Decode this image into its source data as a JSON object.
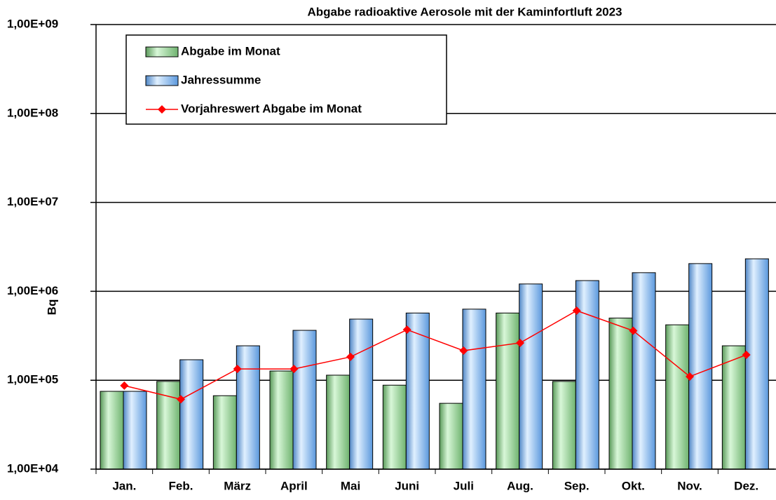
{
  "chart_data": {
    "type": "bar",
    "title": "Abgabe radioaktive Aerosole mit der Kaminfortluft 2023",
    "y_label": "Bq",
    "y_scale": "log",
    "grid": true,
    "legend_position": "upper left",
    "categories": [
      "Jan.",
      "Feb.",
      "März",
      "April",
      "Mai",
      "Juni",
      "Juli",
      "Aug.",
      "Sep.",
      "Okt.",
      "Nov.",
      "Dez."
    ],
    "series": [
      {
        "name": "Abgabe im Monat",
        "type": "bar",
        "color": "#7fc97f",
        "values": [
          75000,
          97000,
          67000,
          127000,
          114000,
          88000,
          55000,
          570000,
          97000,
          500000,
          420000,
          244000
        ]
      },
      {
        "name": "Jahressumme",
        "type": "bar",
        "color": "#7fb8f0",
        "values": [
          75000,
          170000,
          244000,
          364000,
          487000,
          570000,
          630000,
          1210000,
          1320000,
          1620000,
          2050000,
          2320000
        ]
      },
      {
        "name": "Vorjahreswert Abgabe im Monat",
        "type": "line",
        "color": "#ff0000",
        "values": [
          87000,
          61000,
          134000,
          134000,
          183000,
          370000,
          215000,
          263000,
          606000,
          360000,
          110000,
          193000
        ]
      }
    ],
    "ylim": [
      10000,
      1000000000
    ],
    "yticks": [
      {
        "value": 10000,
        "label": "1,00E+04"
      },
      {
        "value": 100000,
        "label": "1,00E+05"
      },
      {
        "value": 1000000,
        "label": "1,00E+06"
      },
      {
        "value": 10000000,
        "label": "1,00E+07"
      },
      {
        "value": 100000000,
        "label": "1,00E+08"
      },
      {
        "value": 1000000000,
        "label": "1,00E+09"
      }
    ]
  }
}
